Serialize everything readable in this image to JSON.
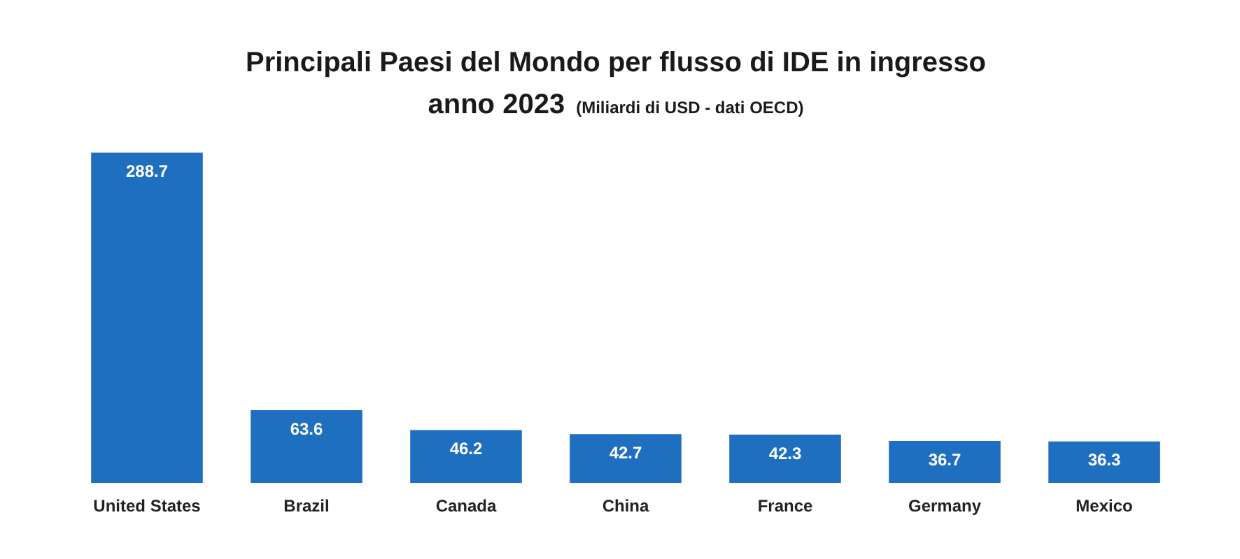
{
  "chart_data": {
    "type": "bar",
    "title": "Principali Paesi del Mondo per flusso di IDE in ingresso anno 2023",
    "subtitle": "(Miliardi di USD - dati OECD)",
    "categories": [
      "United States",
      "Brazil",
      "Canada",
      "China",
      "France",
      "Germany",
      "Mexico"
    ],
    "values": [
      288.7,
      63.6,
      46.2,
      42.7,
      42.3,
      36.7,
      36.3
    ],
    "color": "#1f6fc1",
    "data_labels": true,
    "relative": false,
    "grid": false,
    "legend": false
  }
}
